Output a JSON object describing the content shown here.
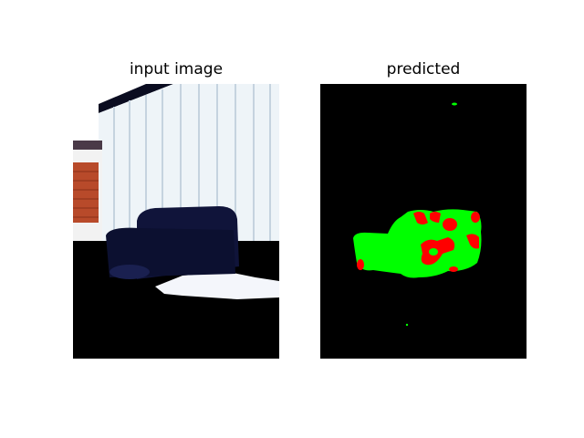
{
  "figure": {
    "panels": [
      {
        "id": "input",
        "title": "input image"
      },
      {
        "id": "prediction",
        "title": "predicted"
      }
    ],
    "colors": {
      "background": "#ffffff",
      "mask_background": "#000000",
      "class_green": "#00ff00",
      "class_red": "#ff0000",
      "sofa": "#10143a",
      "wall": "#eef4f8",
      "door": "#b84a2a"
    }
  }
}
